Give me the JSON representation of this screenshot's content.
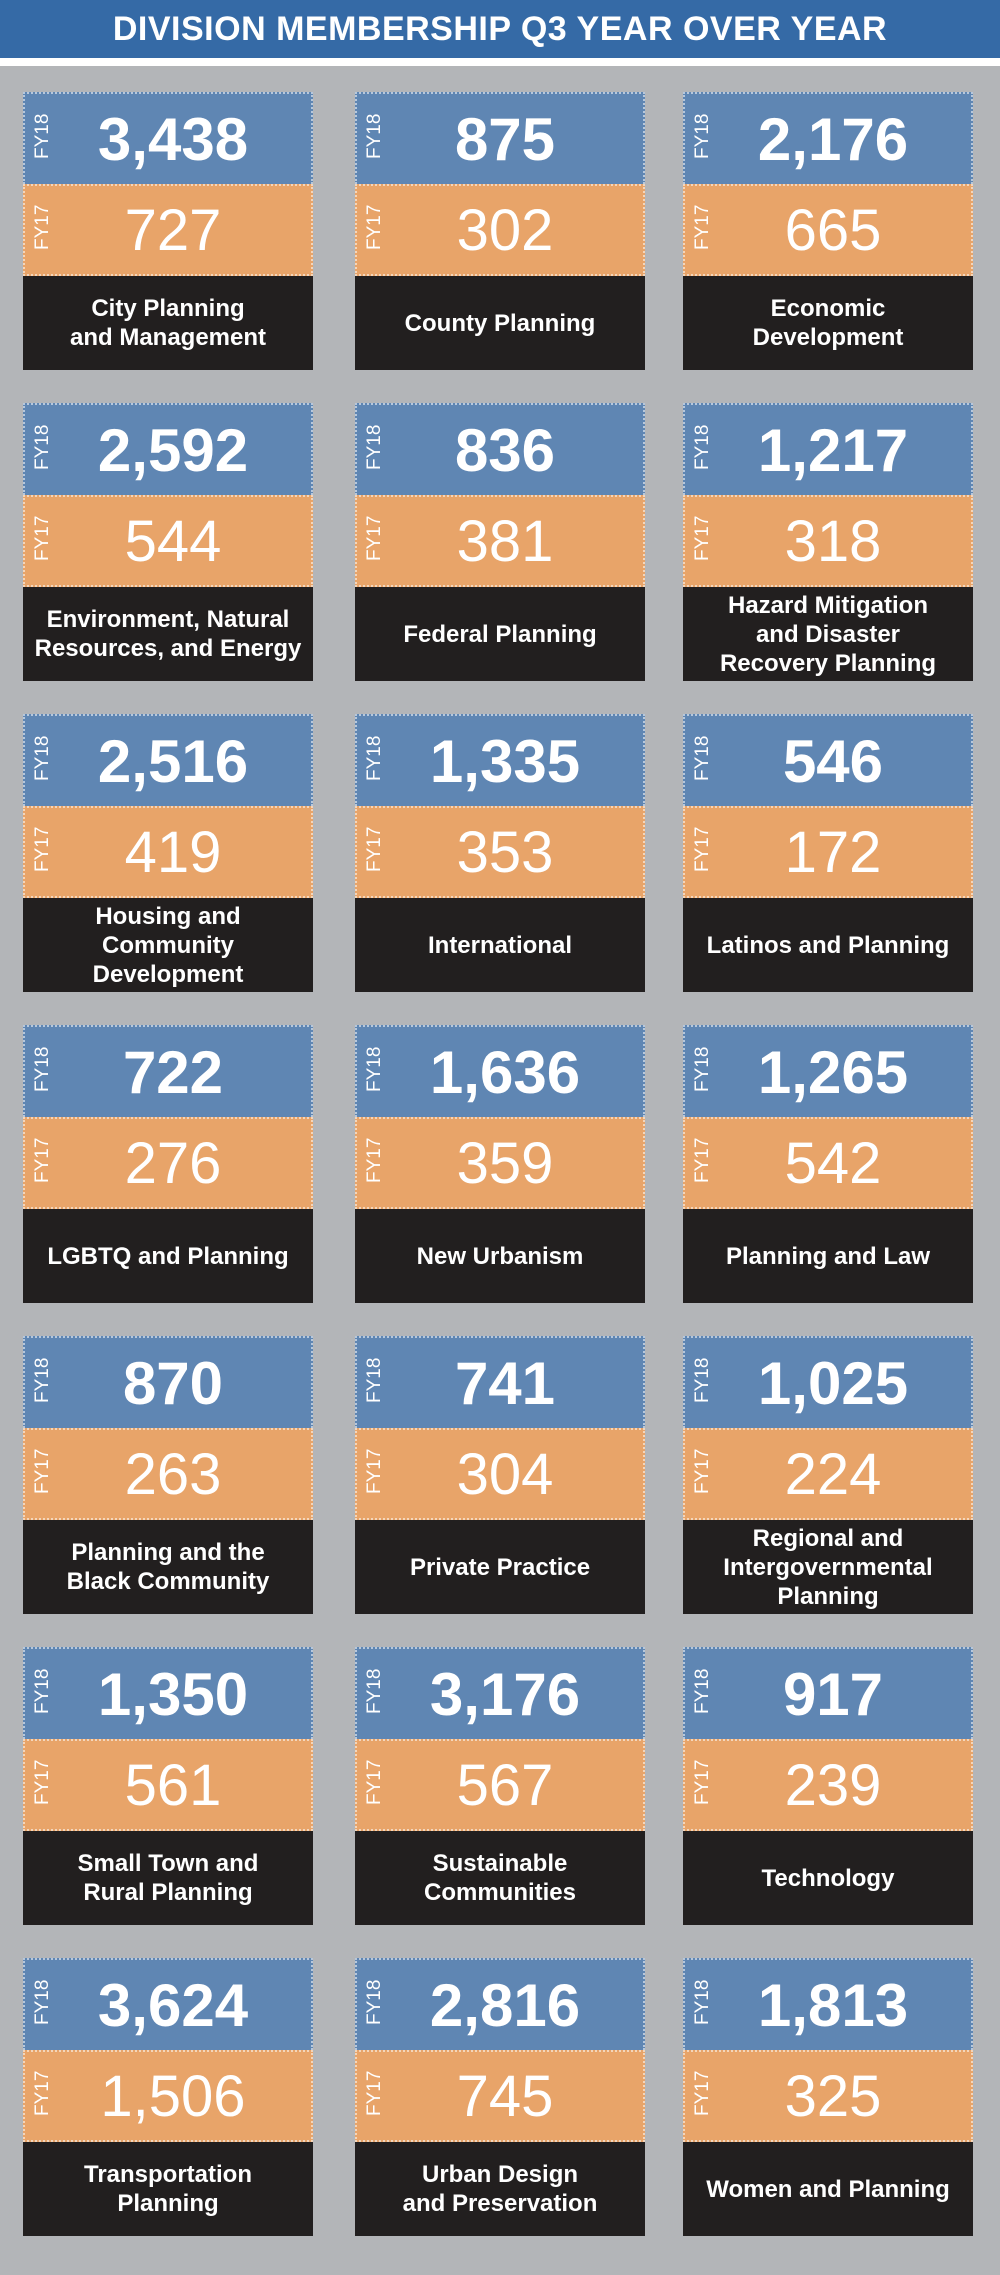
{
  "header": {
    "title": "DIVISION MEMBERSHIP Q3 YEAR OVER YEAR"
  },
  "colors": {
    "header_bg": "#356aa6",
    "fy18_band": "#5f86b3",
    "fy17_band": "#e8a469",
    "name_band": "#221f1f",
    "background": "#b3b5b8"
  },
  "chart_data": {
    "type": "table",
    "title": "DIVISION MEMBERSHIP Q3 YEAR OVER YEAR",
    "series_labels": {
      "fy18": "FY18",
      "fy17": "FY17"
    },
    "divisions": [
      {
        "name": "City Planning\nand Management",
        "fy18": "3,438",
        "fy17": "727"
      },
      {
        "name": "County Planning",
        "fy18": "875",
        "fy17": "302"
      },
      {
        "name": "Economic\nDevelopment",
        "fy18": "2,176",
        "fy17": "665"
      },
      {
        "name": "Environment, Natural\nResources, and Energy",
        "fy18": "2,592",
        "fy17": "544"
      },
      {
        "name": "Federal Planning",
        "fy18": "836",
        "fy17": "381"
      },
      {
        "name": "Hazard Mitigation\nand Disaster\nRecovery Planning",
        "fy18": "1,217",
        "fy17": "318"
      },
      {
        "name": "Housing and\nCommunity\nDevelopment",
        "fy18": "2,516",
        "fy17": "419"
      },
      {
        "name": "International",
        "fy18": "1,335",
        "fy17": "353"
      },
      {
        "name": "Latinos and Planning",
        "fy18": "546",
        "fy17": "172"
      },
      {
        "name": "LGBTQ and Planning",
        "fy18": "722",
        "fy17": "276"
      },
      {
        "name": "New Urbanism",
        "fy18": "1,636",
        "fy17": "359"
      },
      {
        "name": "Planning and Law",
        "fy18": "1,265",
        "fy17": "542"
      },
      {
        "name": "Planning and the\nBlack Community",
        "fy18": "870",
        "fy17": "263"
      },
      {
        "name": "Private Practice",
        "fy18": "741",
        "fy17": "304"
      },
      {
        "name": "Regional and\nIntergovernmental\nPlanning",
        "fy18": "1,025",
        "fy17": "224"
      },
      {
        "name": "Small Town and\nRural Planning",
        "fy18": "1,350",
        "fy17": "561"
      },
      {
        "name": "Sustainable\nCommunities",
        "fy18": "3,176",
        "fy17": "567"
      },
      {
        "name": "Technology",
        "fy18": "917",
        "fy17": "239"
      },
      {
        "name": "Transportation\nPlanning",
        "fy18": "3,624",
        "fy17": "1,506"
      },
      {
        "name": "Urban Design\nand Preservation",
        "fy18": "2,816",
        "fy17": "745"
      },
      {
        "name": "Women and Planning",
        "fy18": "1,813",
        "fy17": "325"
      }
    ]
  }
}
